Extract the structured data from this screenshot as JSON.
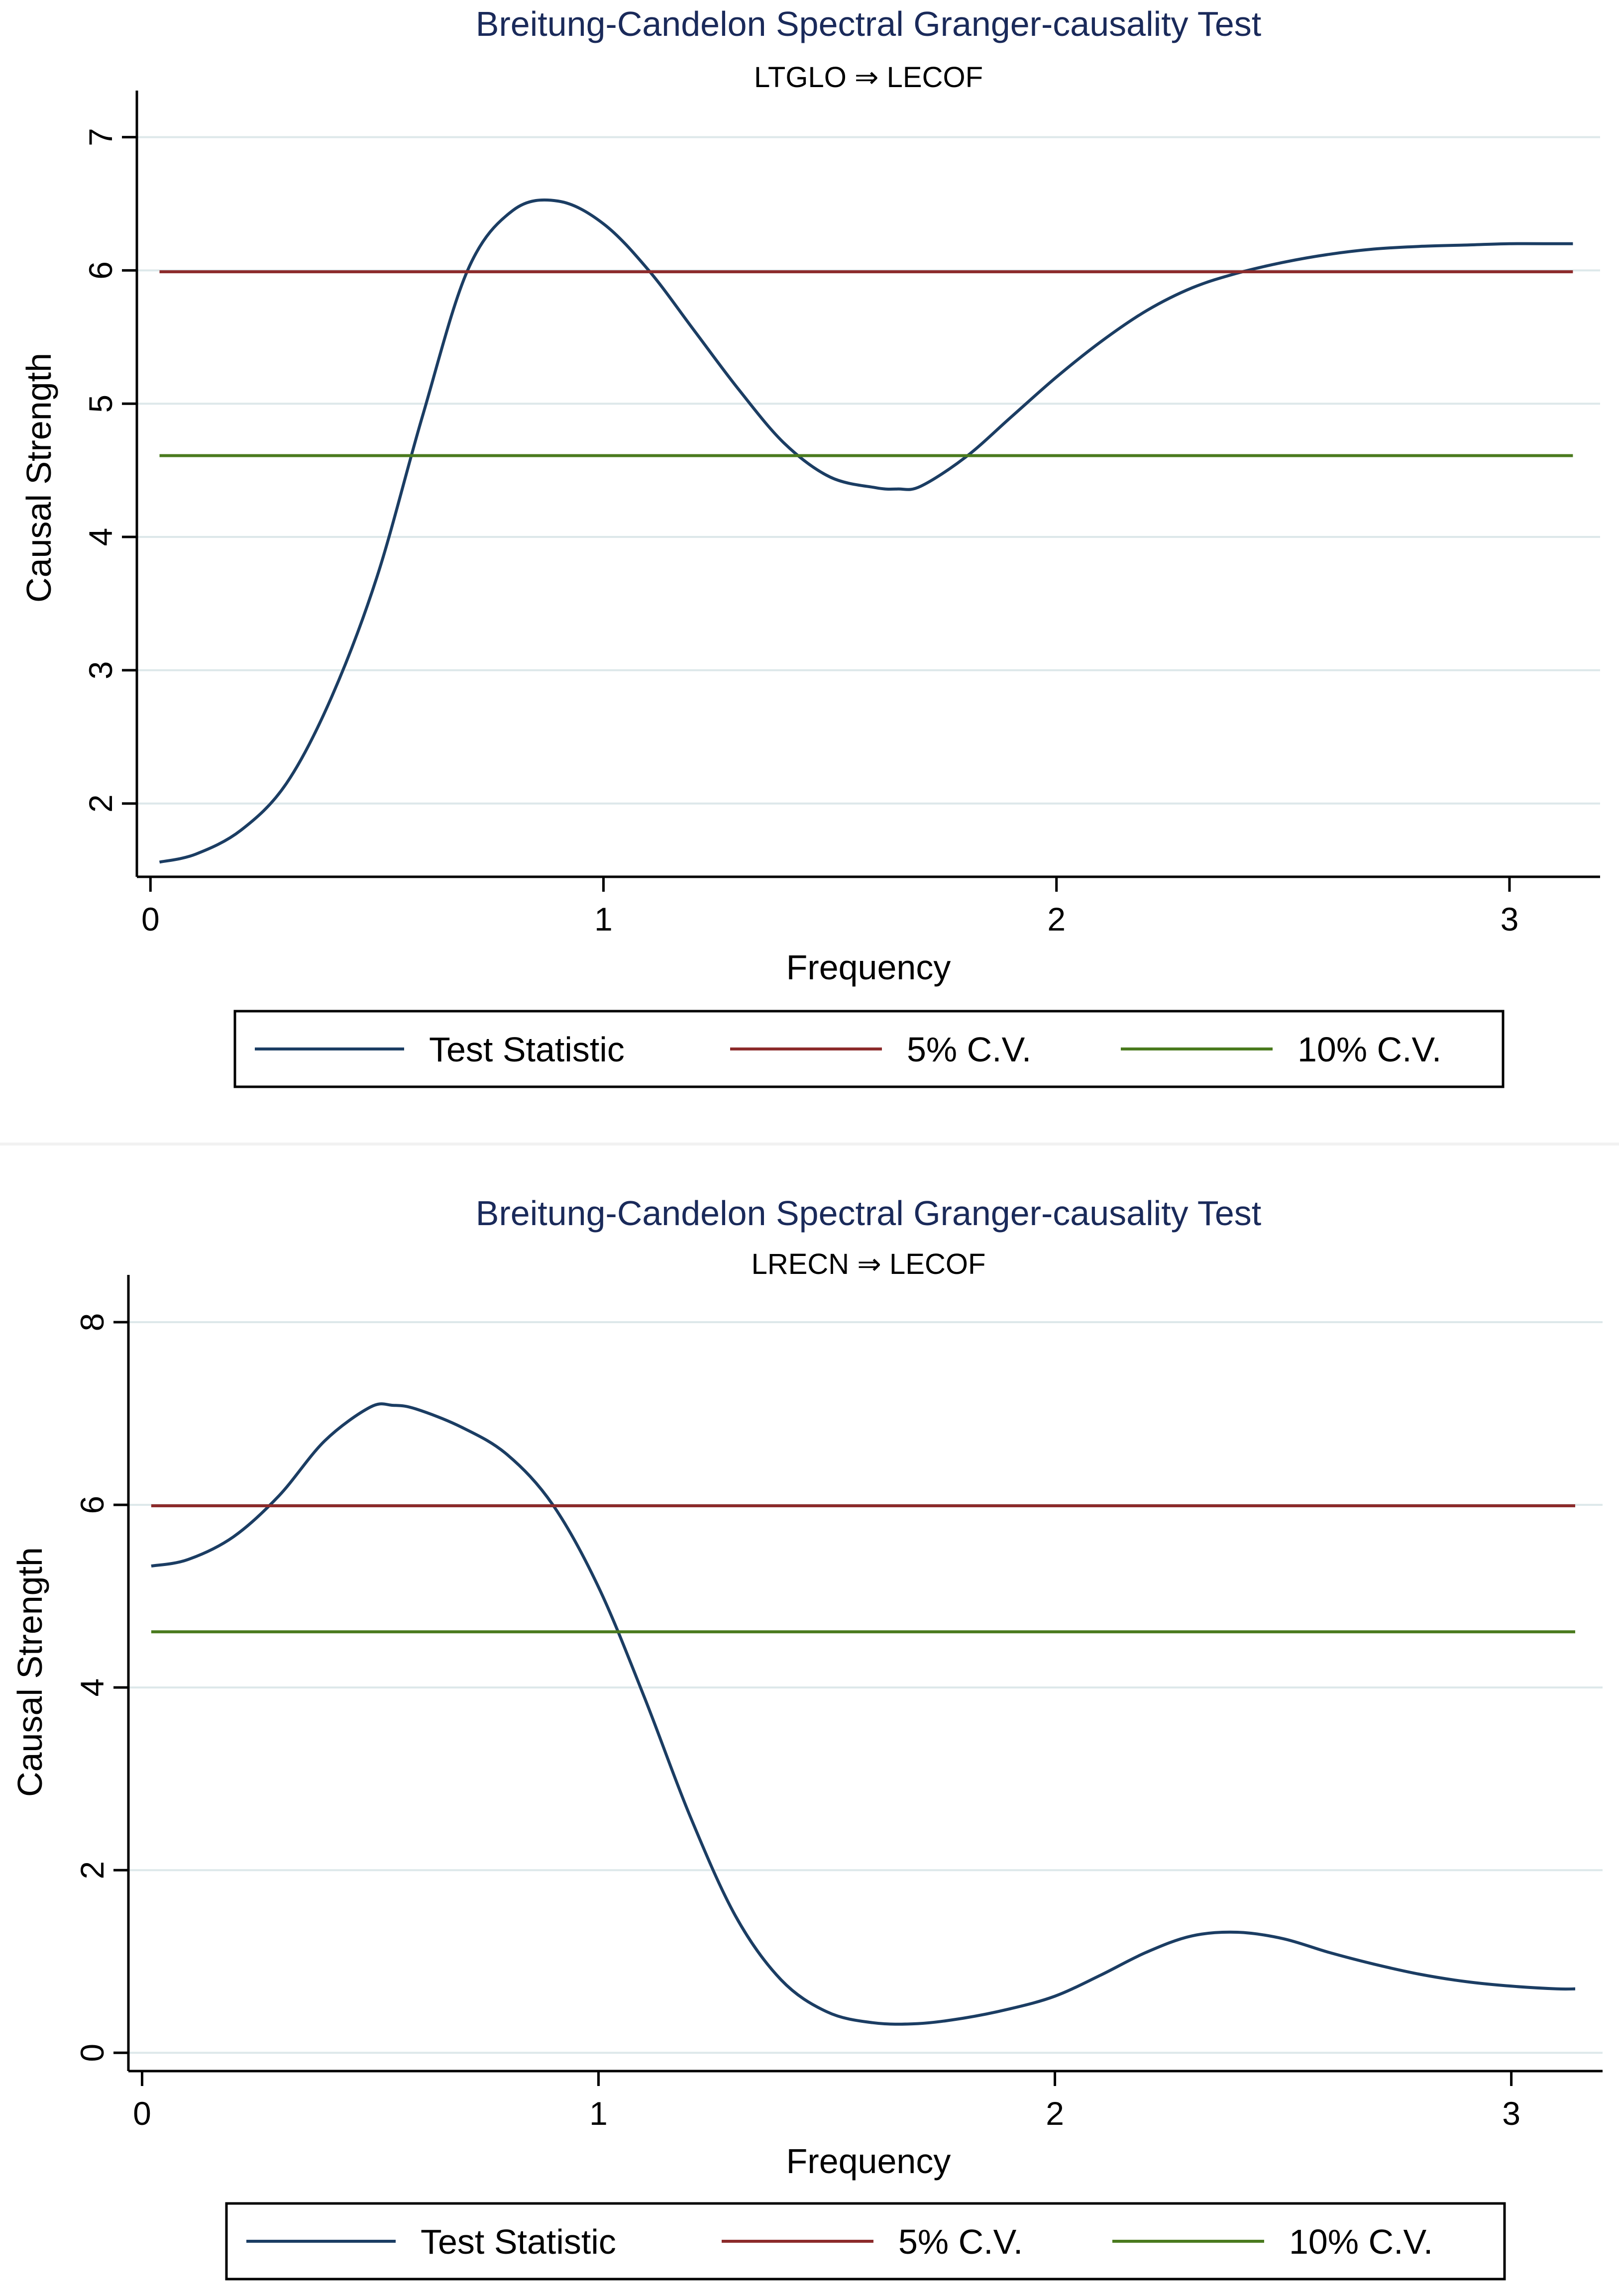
{
  "colors": {
    "title": "#1a2a5a",
    "test_statistic": "#1b3d63",
    "cv5": "#8c2b2b",
    "cv10": "#4a7a1e",
    "grid": "#dde8ea",
    "axis": "#000000"
  },
  "chart_data": [
    {
      "type": "line",
      "title": "Breitung-Candelon Spectral Granger-causality Test",
      "subtitle": "LTGLO ⇒ LECOF",
      "xlabel": "Frequency",
      "ylabel": "Causal Strength",
      "xlim": [
        -0.03,
        3.2
      ],
      "ylim": [
        1.45,
        7.2
      ],
      "xticks": [
        0,
        1,
        2,
        3
      ],
      "xtick_labels": [
        "0",
        "1",
        "2",
        "3"
      ],
      "yticks": [
        2,
        3,
        4,
        5,
        6,
        7
      ],
      "ytick_labels": [
        "2",
        "3",
        "4",
        "5",
        "6",
        "7"
      ],
      "grid": true,
      "legend": {
        "position": "bottom",
        "entries": [
          "Test Statistic",
          "5% C.V.",
          "10% C.V."
        ]
      },
      "series": [
        {
          "name": "Test Statistic",
          "x": [
            0.02,
            0.1,
            0.2,
            0.3,
            0.4,
            0.5,
            0.6,
            0.7,
            0.8,
            0.9,
            1.0,
            1.1,
            1.2,
            1.3,
            1.4,
            1.5,
            1.6,
            1.65,
            1.7,
            1.8,
            1.9,
            2.0,
            2.1,
            2.2,
            2.3,
            2.4,
            2.5,
            2.6,
            2.7,
            2.8,
            2.9,
            3.0,
            3.1,
            3.14
          ],
          "values": [
            1.56,
            1.62,
            1.8,
            2.15,
            2.8,
            3.7,
            4.9,
            6.0,
            6.45,
            6.52,
            6.35,
            6.0,
            5.55,
            5.1,
            4.7,
            4.45,
            4.37,
            4.36,
            4.38,
            4.6,
            4.9,
            5.2,
            5.47,
            5.7,
            5.87,
            5.98,
            6.06,
            6.12,
            6.16,
            6.18,
            6.19,
            6.2,
            6.2,
            6.2
          ]
        },
        {
          "name": "5% C.V.",
          "x": [
            0.02,
            3.14
          ],
          "values": [
            5.99,
            5.99
          ]
        },
        {
          "name": "10% C.V.",
          "x": [
            0.02,
            3.14
          ],
          "values": [
            4.61,
            4.61
          ]
        }
      ]
    },
    {
      "type": "line",
      "title": "Breitung-Candelon Spectral Granger-causality Test",
      "subtitle": "LRECN ⇒ LECOF",
      "xlabel": "Frequency",
      "ylabel": "Causal Strength",
      "xlim": [
        -0.03,
        3.2
      ],
      "ylim": [
        -0.2,
        8.3
      ],
      "xticks": [
        0,
        1,
        2,
        3
      ],
      "xtick_labels": [
        "0",
        "1",
        "2",
        "3"
      ],
      "yticks": [
        0,
        2,
        4,
        6,
        8
      ],
      "ytick_labels": [
        "0",
        "2",
        "4",
        "6",
        "8"
      ],
      "grid": true,
      "legend": {
        "position": "bottom",
        "entries": [
          "Test Statistic",
          "5% C.V.",
          "10% C.V."
        ]
      },
      "series": [
        {
          "name": "Test Statistic",
          "x": [
            0.02,
            0.1,
            0.2,
            0.3,
            0.4,
            0.5,
            0.55,
            0.6,
            0.7,
            0.8,
            0.9,
            1.0,
            1.1,
            1.2,
            1.3,
            1.4,
            1.5,
            1.6,
            1.7,
            1.8,
            1.9,
            2.0,
            2.1,
            2.2,
            2.3,
            2.4,
            2.5,
            2.6,
            2.7,
            2.8,
            2.9,
            3.0,
            3.1,
            3.14
          ],
          "values": [
            5.33,
            5.4,
            5.65,
            6.1,
            6.7,
            7.07,
            7.09,
            7.05,
            6.85,
            6.55,
            6.0,
            5.1,
            3.9,
            2.6,
            1.5,
            0.8,
            0.45,
            0.33,
            0.32,
            0.38,
            0.48,
            0.62,
            0.85,
            1.1,
            1.28,
            1.32,
            1.25,
            1.1,
            0.97,
            0.86,
            0.78,
            0.73,
            0.7,
            0.7
          ]
        },
        {
          "name": "5% C.V.",
          "x": [
            0.02,
            3.14
          ],
          "values": [
            5.99,
            5.99
          ]
        },
        {
          "name": "10% C.V.",
          "x": [
            0.02,
            3.14
          ],
          "values": [
            4.61,
            4.61
          ]
        }
      ]
    }
  ]
}
